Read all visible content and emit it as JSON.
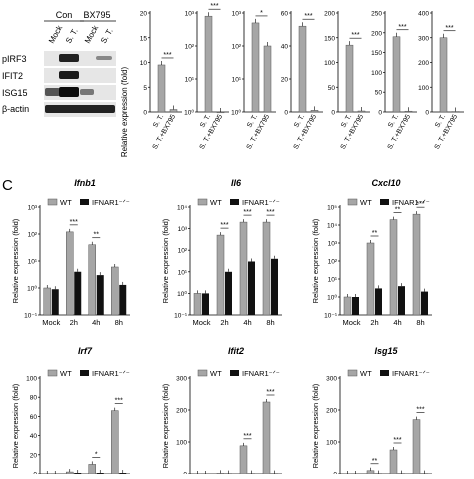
{
  "blot": {
    "group_labels": [
      "Con",
      "BX795"
    ],
    "lane_labels": [
      "Mock",
      "S. T.",
      "Mock",
      "S. T."
    ],
    "row_labels": [
      "pIRF3",
      "IFIT2",
      "ISG15",
      "β-actin"
    ]
  },
  "top_bars": {
    "ylabel": "Relative expression (fold)",
    "categories": [
      "S. T.",
      "S. T.+BX795"
    ],
    "panels": [
      {
        "scale": "linear",
        "ymax": 20,
        "ticks": [
          "0",
          "5",
          "10",
          "15",
          "20"
        ],
        "values": [
          9.5,
          0.5
        ],
        "sig": "***"
      },
      {
        "scale": "log",
        "ymin": 1,
        "ymax": 1000,
        "ticks": [
          "10⁰",
          "10¹",
          "10²",
          "10³"
        ],
        "values": [
          800,
          1
        ],
        "sig": "***"
      },
      {
        "scale": "log",
        "ymin": 1,
        "ymax": 1000,
        "ticks": [
          "10⁰",
          "10¹",
          "10²",
          "10³"
        ],
        "values": [
          500,
          100
        ],
        "sig": "*"
      },
      {
        "scale": "linear",
        "ymax": 60,
        "ticks": [
          "0",
          "20",
          "40",
          "60"
        ],
        "values": [
          52,
          1
        ],
        "sig": "***"
      },
      {
        "scale": "linear",
        "ymax": 200,
        "ticks": [
          "0",
          "50",
          "100",
          "150",
          "200"
        ],
        "values": [
          135,
          2
        ],
        "sig": "***"
      },
      {
        "scale": "linear",
        "ymax": 250,
        "ticks": [
          "0",
          "50",
          "100",
          "150",
          "200",
          "250"
        ],
        "values": [
          190,
          2
        ],
        "sig": "***"
      },
      {
        "scale": "linear",
        "ymax": 400,
        "ticks": [
          "0",
          "100",
          "200",
          "300",
          "400"
        ],
        "values": [
          300,
          2
        ],
        "sig": "***"
      }
    ]
  },
  "panel_c": {
    "letter": "C",
    "legend": [
      "WT",
      "IFNAR1⁻ᐟ⁻"
    ],
    "categories": [
      "Mock",
      "2h",
      "4h",
      "8h"
    ],
    "ylabel": "Relative expression (fold)",
    "log_charts": [
      {
        "title": "Ifnb1",
        "ymin": -1,
        "ymax": 3,
        "ticks": [
          "10⁻¹",
          "10⁰",
          "10¹",
          "10²",
          "10³"
        ],
        "wt": [
          1,
          120,
          40,
          6
        ],
        "ko": [
          0.9,
          4,
          3,
          1.3
        ],
        "sig": [
          "",
          "***",
          "**",
          ""
        ]
      },
      {
        "title": "Il6",
        "ymin": -1,
        "ymax": 4,
        "ticks": [
          "10⁻¹",
          "10⁰",
          "10¹",
          "10²",
          "10³",
          "10⁴"
        ],
        "wt": [
          1,
          500,
          2000,
          2000
        ],
        "ko": [
          1,
          10,
          30,
          40
        ],
        "sig": [
          "",
          "***",
          "***",
          "***"
        ]
      },
      {
        "title": "Cxcl10",
        "ymin": -1,
        "ymax": 5,
        "ticks": [
          "10⁻¹",
          "10⁰",
          "10¹",
          "10²",
          "10³",
          "10⁴",
          "10⁵"
        ],
        "wt": [
          1,
          1000,
          20000,
          40000
        ],
        "ko": [
          1,
          3,
          4,
          2
        ],
        "sig": [
          "",
          "**",
          "**",
          "***"
        ]
      }
    ],
    "linear_charts": [
      {
        "title": "Irf7",
        "ymax": 100,
        "ticks": [
          "0",
          "20",
          "40",
          "60",
          "80",
          "100"
        ],
        "wt": [
          0,
          2,
          10,
          66
        ],
        "ko": [
          0,
          1,
          1,
          1
        ],
        "sig": [
          "",
          "",
          "*",
          "***"
        ]
      },
      {
        "title": "Ifit2",
        "ymax": 300,
        "ticks": [
          "0",
          "100",
          "200",
          "300"
        ],
        "wt": [
          0,
          2,
          88,
          225
        ],
        "ko": [
          0,
          1,
          1,
          1
        ],
        "sig": [
          "",
          "",
          "***",
          "***"
        ]
      },
      {
        "title": "Isg15",
        "ymax": 300,
        "ticks": [
          "0",
          "100",
          "200",
          "300"
        ],
        "wt": [
          0,
          10,
          75,
          170
        ],
        "ko": [
          0,
          1,
          1,
          1
        ],
        "sig": [
          "",
          "**",
          "***",
          "***"
        ]
      }
    ]
  },
  "colors": {
    "wt": "#a6a6a6",
    "ko": "#111111",
    "axis": "#000000"
  }
}
